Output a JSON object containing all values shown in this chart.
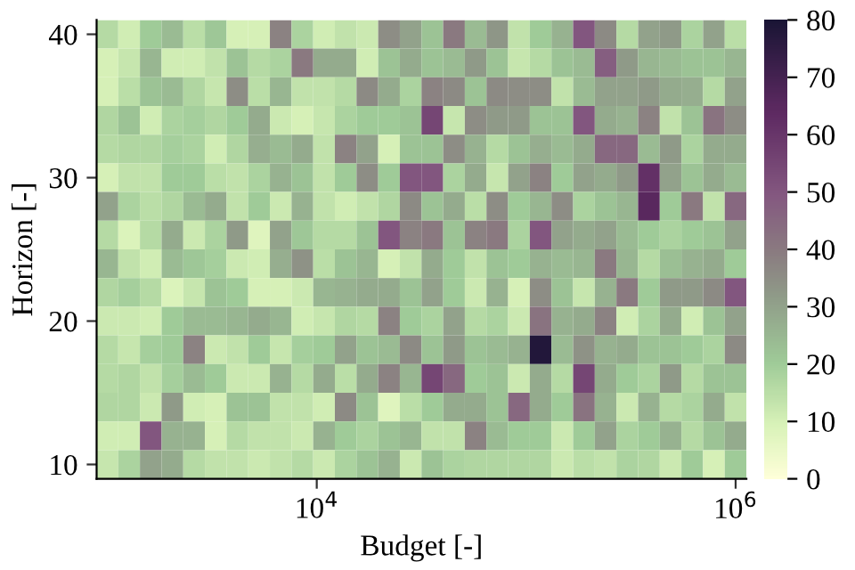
{
  "chart_data": {
    "type": "heatmap",
    "xlabel": "Budget [-]",
    "ylabel": "Horizon [-]",
    "log": "x",
    "xlim": [
      889,
      1126000
    ],
    "ylim": [
      9,
      41
    ],
    "xticks": [
      {
        "value": 10000,
        "label": "10$^{4}$"
      },
      {
        "value": 1000000,
        "label": "10$^{6}$"
      }
    ],
    "yticks": [
      10,
      20,
      30,
      40
    ],
    "clim": [
      0,
      80
    ],
    "cticks": [
      0,
      10,
      20,
      30,
      40,
      50,
      60,
      70,
      80
    ],
    "cells": [
      [
        16,
        11,
        20,
        24,
        15,
        21,
        10,
        10,
        38,
        18,
        11,
        14,
        12,
        35,
        30,
        22,
        40,
        24,
        33,
        14,
        20,
        26,
        50,
        36,
        16,
        30,
        32,
        18,
        30,
        15
      ],
      [
        10,
        13,
        25,
        11,
        11,
        14,
        22,
        16,
        18,
        40,
        28,
        28,
        11,
        22,
        28,
        22,
        24,
        32,
        22,
        13,
        16,
        22,
        24,
        48,
        32,
        25,
        24,
        22,
        22,
        25
      ],
      [
        10,
        15,
        22,
        24,
        17,
        13,
        35,
        15,
        25,
        14,
        14,
        16,
        36,
        28,
        18,
        38,
        36,
        22,
        36,
        35,
        35,
        14,
        24,
        30,
        30,
        32,
        28,
        27,
        16,
        30
      ],
      [
        17,
        22,
        11,
        18,
        19,
        17,
        20,
        28,
        12,
        10,
        13,
        18,
        20,
        20,
        22,
        55,
        13,
        35,
        32,
        32,
        22,
        22,
        50,
        28,
        26,
        38,
        14,
        22,
        42,
        35
      ],
      [
        16,
        17,
        17,
        19,
        18,
        11,
        17,
        27,
        24,
        28,
        14,
        38,
        30,
        10,
        22,
        22,
        35,
        26,
        16,
        22,
        27,
        24,
        28,
        45,
        45,
        24,
        32,
        18,
        28,
        28
      ],
      [
        10,
        14,
        14,
        20,
        20,
        15,
        14,
        18,
        26,
        22,
        14,
        20,
        35,
        20,
        50,
        50,
        18,
        28,
        13,
        30,
        38,
        20,
        30,
        28,
        32,
        62,
        30,
        22,
        28,
        24
      ],
      [
        30,
        18,
        15,
        17,
        24,
        28,
        14,
        20,
        12,
        26,
        14,
        11,
        14,
        17,
        36,
        22,
        28,
        15,
        35,
        20,
        25,
        35,
        18,
        22,
        25,
        65,
        20,
        40,
        14,
        45
      ],
      [
        16,
        9,
        16,
        28,
        12,
        18,
        32,
        8,
        30,
        21,
        16,
        16,
        22,
        50,
        38,
        40,
        22,
        38,
        40,
        18,
        50,
        30,
        28,
        30,
        24,
        20,
        18,
        20,
        22,
        30
      ],
      [
        25,
        14,
        11,
        24,
        21,
        19,
        12,
        11,
        27,
        34,
        15,
        22,
        25,
        10,
        14,
        28,
        20,
        14,
        22,
        20,
        26,
        24,
        25,
        40,
        25,
        16,
        23,
        26,
        28,
        20
      ],
      [
        17,
        19,
        16,
        9,
        13,
        22,
        20,
        10,
        10,
        12,
        25,
        26,
        28,
        28,
        22,
        30,
        20,
        12,
        26,
        10,
        35,
        22,
        13,
        26,
        40,
        20,
        32,
        32,
        36,
        50
      ],
      [
        12,
        12,
        11,
        20,
        24,
        24,
        25,
        28,
        25,
        11,
        13,
        17,
        16,
        38,
        20,
        18,
        30,
        16,
        18,
        12,
        42,
        26,
        28,
        38,
        11,
        18,
        28,
        11,
        22,
        30
      ],
      [
        16,
        13,
        19,
        20,
        38,
        12,
        14,
        20,
        13,
        19,
        20,
        30,
        22,
        24,
        36,
        22,
        32,
        22,
        24,
        26,
        78,
        24,
        34,
        26,
        28,
        22,
        22,
        20,
        18,
        36
      ],
      [
        16,
        17,
        14,
        19,
        24,
        20,
        12,
        12,
        26,
        16,
        28,
        15,
        28,
        38,
        25,
        55,
        45,
        20,
        22,
        12,
        28,
        16,
        55,
        28,
        20,
        18,
        32,
        16,
        22,
        22
      ],
      [
        17,
        17,
        12,
        32,
        11,
        10,
        22,
        22,
        14,
        14,
        11,
        36,
        22,
        8,
        15,
        20,
        28,
        28,
        22,
        45,
        28,
        20,
        42,
        26,
        12,
        26,
        16,
        18,
        28,
        14
      ],
      [
        11,
        11,
        50,
        26,
        26,
        10,
        16,
        14,
        14,
        12,
        26,
        20,
        18,
        22,
        25,
        14,
        14,
        38,
        24,
        20,
        20,
        12,
        20,
        30,
        18,
        20,
        26,
        16,
        22,
        28
      ],
      [
        13,
        18,
        30,
        28,
        16,
        14,
        14,
        12,
        14,
        16,
        12,
        18,
        22,
        26,
        12,
        22,
        18,
        17,
        17,
        17,
        17,
        12,
        15,
        14,
        18,
        17,
        12,
        20,
        10,
        20
      ]
    ]
  }
}
